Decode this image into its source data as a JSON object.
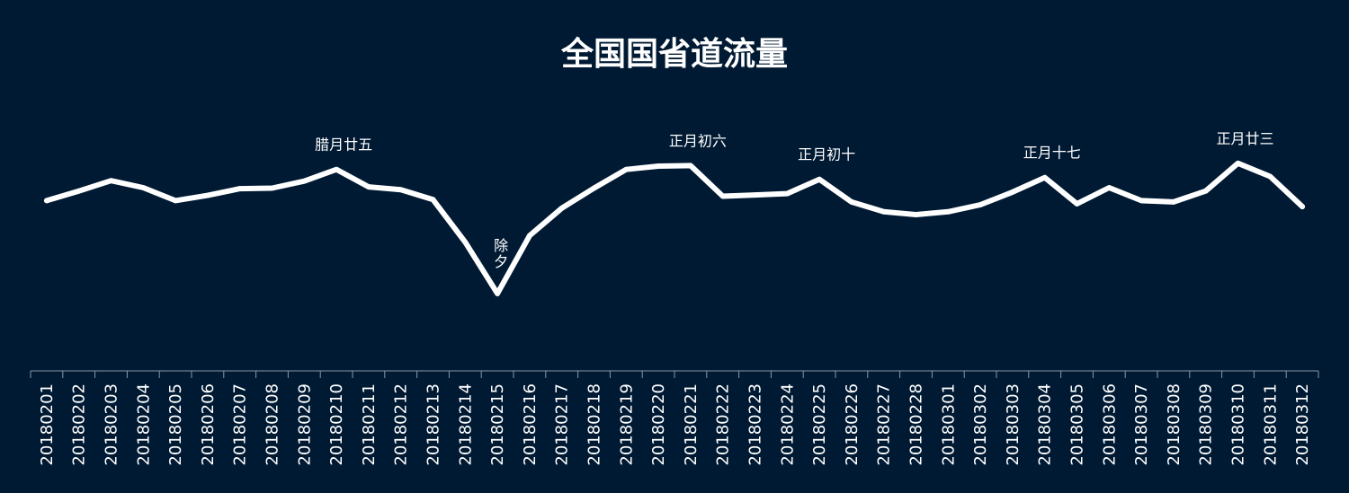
{
  "colors": {
    "background": "#001a33",
    "line": "#ffffff",
    "text": "#ffffff",
    "axis": "#8c97a3"
  },
  "chart_data": {
    "type": "line",
    "title": "全国国省道流量",
    "xlabel": "",
    "ylabel": "",
    "grid": false,
    "y_axis_visible": false,
    "legend": "none",
    "ylim": [
      0,
      100
    ],
    "categories": [
      "20180201",
      "20180202",
      "20180203",
      "20180204",
      "20180205",
      "20180206",
      "20180207",
      "20180208",
      "20180209",
      "20180210",
      "20180211",
      "20180212",
      "20180213",
      "20180214",
      "20180215",
      "20180216",
      "20180217",
      "20180218",
      "20180219",
      "20180220",
      "20180221",
      "20180222",
      "20180223",
      "20180224",
      "20180225",
      "20180226",
      "20180227",
      "20180228",
      "20180301",
      "20180302",
      "20180303",
      "20180304",
      "20180305",
      "20180306",
      "20180307",
      "20180308",
      "20180309",
      "20180310",
      "20180311",
      "20180312"
    ],
    "series": [
      {
        "values": [
          65.6,
          69.3,
          73.3,
          70.6,
          65.6,
          67.6,
          70.2,
          70.4,
          73.1,
          77.6,
          70.9,
          69.8,
          66.0,
          49.6,
          29.8,
          52.1,
          62.7,
          70.4,
          77.6,
          78.9,
          79.1,
          67.3,
          67.8,
          68.3,
          73.8,
          65.1,
          61.3,
          60.2,
          61.3,
          64.0,
          68.9,
          74.5,
          64.4,
          70.6,
          65.6,
          65.1,
          69.3,
          80.0,
          74.9,
          63.3
        ]
      }
    ],
    "annotations": [
      {
        "category": "20180210",
        "text": "腊月廿五",
        "position": "above"
      },
      {
        "category": "20180215",
        "text": "除夕",
        "position": "above",
        "vertical": true
      },
      {
        "category": "20180221",
        "text": "正月初六",
        "position": "above"
      },
      {
        "category": "20180225",
        "text": "正月初十",
        "position": "above"
      },
      {
        "category": "20180304",
        "text": "正月十七",
        "position": "above"
      },
      {
        "category": "20180310",
        "text": "正月廿三",
        "position": "above"
      }
    ]
  }
}
